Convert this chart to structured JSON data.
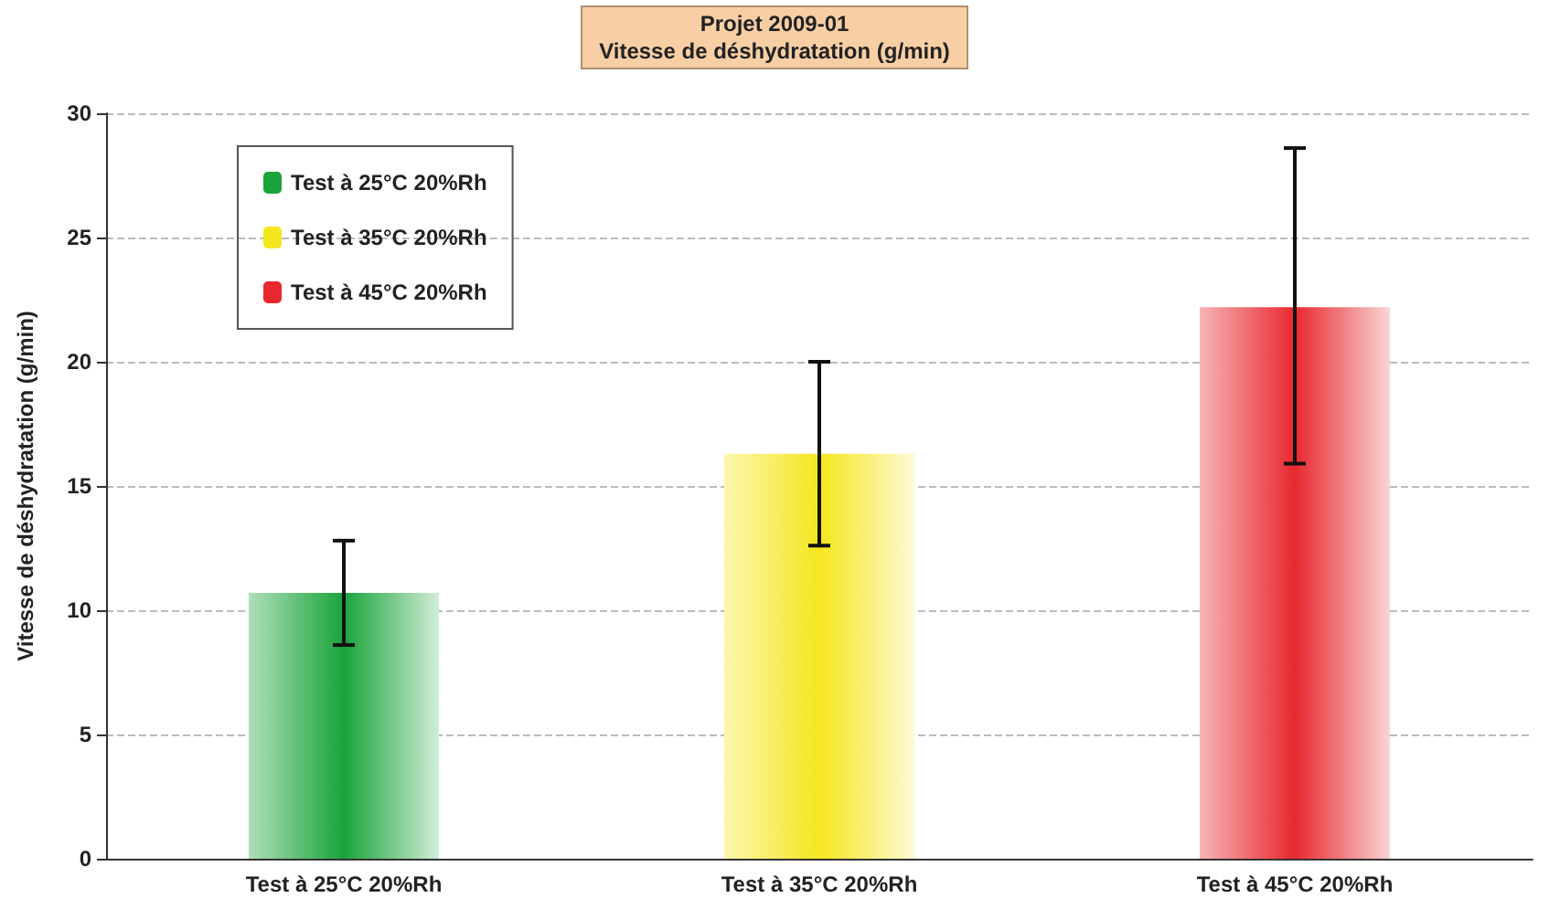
{
  "chart_data": {
    "type": "bar",
    "title": "Projet 2009-01",
    "subtitle": "Vitesse de déshydratation (g/min)",
    "ylabel": "Vitesse de déshydratation (g/min)",
    "categories": [
      "Test à 25°C 20%Rh",
      "Test à 35°C 20%Rh",
      "Test à 45°C 20%Rh"
    ],
    "series": [
      {
        "name": "Test à 25°C 20%Rh",
        "color": "#1aa33a",
        "values": [
          10.7,
          null,
          null
        ],
        "errors": [
          [
            8.6,
            12.8
          ],
          null,
          null
        ]
      },
      {
        "name": "Test à 35°C 20%Rh",
        "color": "#f5e61e",
        "values": [
          null,
          16.3,
          null
        ],
        "errors": [
          null,
          [
            12.6,
            20.0
          ],
          null
        ]
      },
      {
        "name": "Test à 45°C 20%Rh",
        "color": "#e8282e",
        "values": [
          null,
          null,
          22.2
        ],
        "errors": [
          null,
          null,
          [
            15.9,
            28.6
          ]
        ]
      }
    ],
    "ylim": [
      0,
      30
    ],
    "yticks": [
      0,
      5,
      10,
      15,
      20,
      25,
      30
    ],
    "grid": "y",
    "legend": "top left"
  }
}
